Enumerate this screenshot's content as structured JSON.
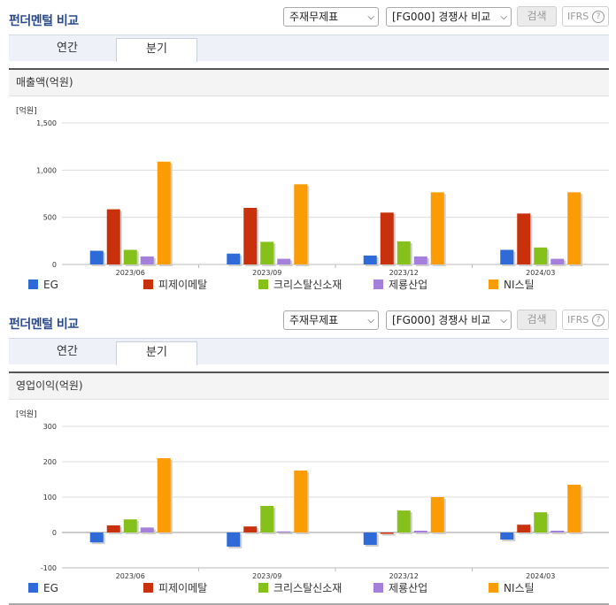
{
  "panels": [
    {
      "title": "펀더멘털 비교",
      "select_statement": "주재무제표",
      "select_compare": "[FG000] 경쟁사 비교",
      "search_label": "검색",
      "ifrs_label": "IFRS",
      "tabs": [
        "연간",
        "분기"
      ],
      "active_tab": "분기",
      "subtitle": "매출액(억원)"
    },
    {
      "title": "펀더멘털 비교",
      "select_statement": "주재무제표",
      "select_compare": "[FG000] 경쟁사 비교",
      "search_label": "검색",
      "ifrs_label": "IFRS",
      "tabs": [
        "연간",
        "분기"
      ],
      "active_tab": "분기",
      "subtitle": "영업이익(억원)"
    }
  ],
  "help_icon_glyph": "?",
  "series_colors": [
    "#2e6bd9",
    "#c9310c",
    "#86c01a",
    "#a47fdb",
    "#fb9c05"
  ],
  "chart_data": [
    {
      "type": "bar",
      "title": "매출액(억원)",
      "unit_label": "[억원]",
      "categories": [
        "2023/06",
        "2023/09",
        "2023/12",
        "2024/03"
      ],
      "ylim": [
        0,
        1500
      ],
      "yticks": [
        0,
        500,
        1000,
        1500
      ],
      "ytick_labels": [
        "0",
        "500",
        "1,000",
        "1,500"
      ],
      "grid": true,
      "legend_position": "bottom",
      "series": [
        {
          "name": "EG",
          "values": [
            145,
            115,
            95,
            155
          ]
        },
        {
          "name": "피제이메탈",
          "values": [
            585,
            600,
            550,
            540
          ]
        },
        {
          "name": "크리스탈신소재",
          "values": [
            155,
            240,
            245,
            180
          ]
        },
        {
          "name": "제룡산업",
          "values": [
            85,
            60,
            85,
            60
          ]
        },
        {
          "name": "NI스틸",
          "values": [
            1090,
            850,
            765,
            765
          ]
        }
      ]
    },
    {
      "type": "bar",
      "title": "영업이익(억원)",
      "unit_label": "[억원]",
      "categories": [
        "2023/06",
        "2023/09",
        "2023/12",
        "2024/03"
      ],
      "ylim": [
        -100,
        300
      ],
      "yticks": [
        -100,
        0,
        100,
        200,
        300
      ],
      "ytick_labels": [
        "-100",
        "0",
        "100",
        "200",
        "300"
      ],
      "grid": true,
      "legend_position": "bottom",
      "series": [
        {
          "name": "EG",
          "values": [
            -28,
            -40,
            -35,
            -20
          ]
        },
        {
          "name": "피제이메탈",
          "values": [
            20,
            17,
            -4,
            22
          ]
        },
        {
          "name": "크리스탈신소재",
          "values": [
            37,
            75,
            62,
            57
          ]
        },
        {
          "name": "제룡산업",
          "values": [
            14,
            3,
            5,
            5
          ]
        },
        {
          "name": "NI스틸",
          "values": [
            210,
            175,
            100,
            135
          ]
        }
      ]
    }
  ]
}
